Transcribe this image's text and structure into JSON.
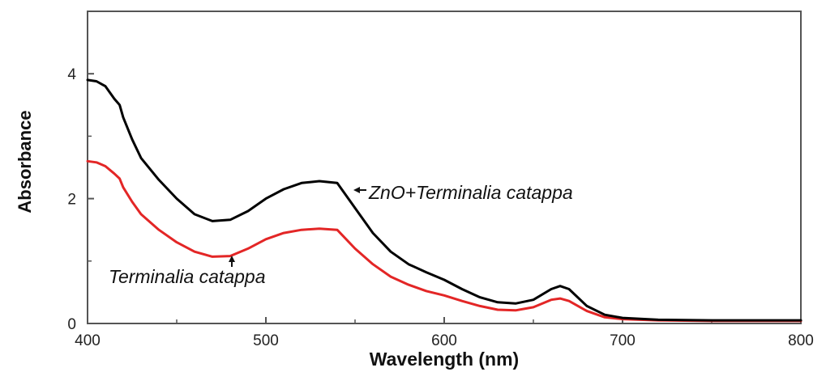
{
  "chart_data": {
    "type": "line",
    "xlabel": "Wavelength (nm)",
    "ylabel": "Absorbance",
    "xlim": [
      400,
      800
    ],
    "ylim": [
      0,
      5
    ],
    "xticks": [
      400,
      500,
      600,
      700,
      800
    ],
    "yticks": [
      0,
      2,
      4
    ],
    "grid": false,
    "series": [
      {
        "name": "ZnO+Terminalia catappa",
        "color": "#000000",
        "x": [
          400,
          405,
          410,
          415,
          418,
          420,
          425,
          430,
          440,
          450,
          460,
          470,
          480,
          490,
          500,
          510,
          520,
          530,
          540,
          550,
          560,
          570,
          580,
          590,
          600,
          610,
          620,
          630,
          640,
          650,
          660,
          665,
          670,
          680,
          690,
          700,
          720,
          750,
          800
        ],
        "y": [
          3.9,
          3.88,
          3.8,
          3.6,
          3.5,
          3.3,
          2.95,
          2.65,
          2.3,
          2.0,
          1.75,
          1.64,
          1.66,
          1.8,
          2.0,
          2.15,
          2.25,
          2.28,
          2.25,
          1.85,
          1.45,
          1.15,
          0.95,
          0.82,
          0.7,
          0.55,
          0.42,
          0.34,
          0.32,
          0.38,
          0.55,
          0.6,
          0.55,
          0.28,
          0.14,
          0.09,
          0.06,
          0.05,
          0.05
        ]
      },
      {
        "name": "Terminalia catappa",
        "color": "#e32626",
        "x": [
          400,
          405,
          410,
          415,
          418,
          420,
          425,
          430,
          440,
          450,
          460,
          470,
          480,
          490,
          500,
          510,
          520,
          530,
          540,
          550,
          560,
          570,
          580,
          590,
          600,
          610,
          620,
          630,
          640,
          650,
          660,
          665,
          670,
          680,
          690,
          700,
          720,
          750,
          800
        ],
        "y": [
          2.6,
          2.58,
          2.52,
          2.4,
          2.32,
          2.18,
          1.95,
          1.75,
          1.5,
          1.3,
          1.15,
          1.07,
          1.08,
          1.2,
          1.35,
          1.45,
          1.5,
          1.52,
          1.5,
          1.2,
          0.95,
          0.75,
          0.62,
          0.52,
          0.45,
          0.36,
          0.28,
          0.22,
          0.21,
          0.26,
          0.38,
          0.4,
          0.36,
          0.2,
          0.1,
          0.07,
          0.05,
          0.04,
          0.04
        ]
      }
    ]
  },
  "annotations": {
    "zno_label": "ZnO+Terminalia catappa",
    "tc_label": "Terminalia catappa"
  }
}
